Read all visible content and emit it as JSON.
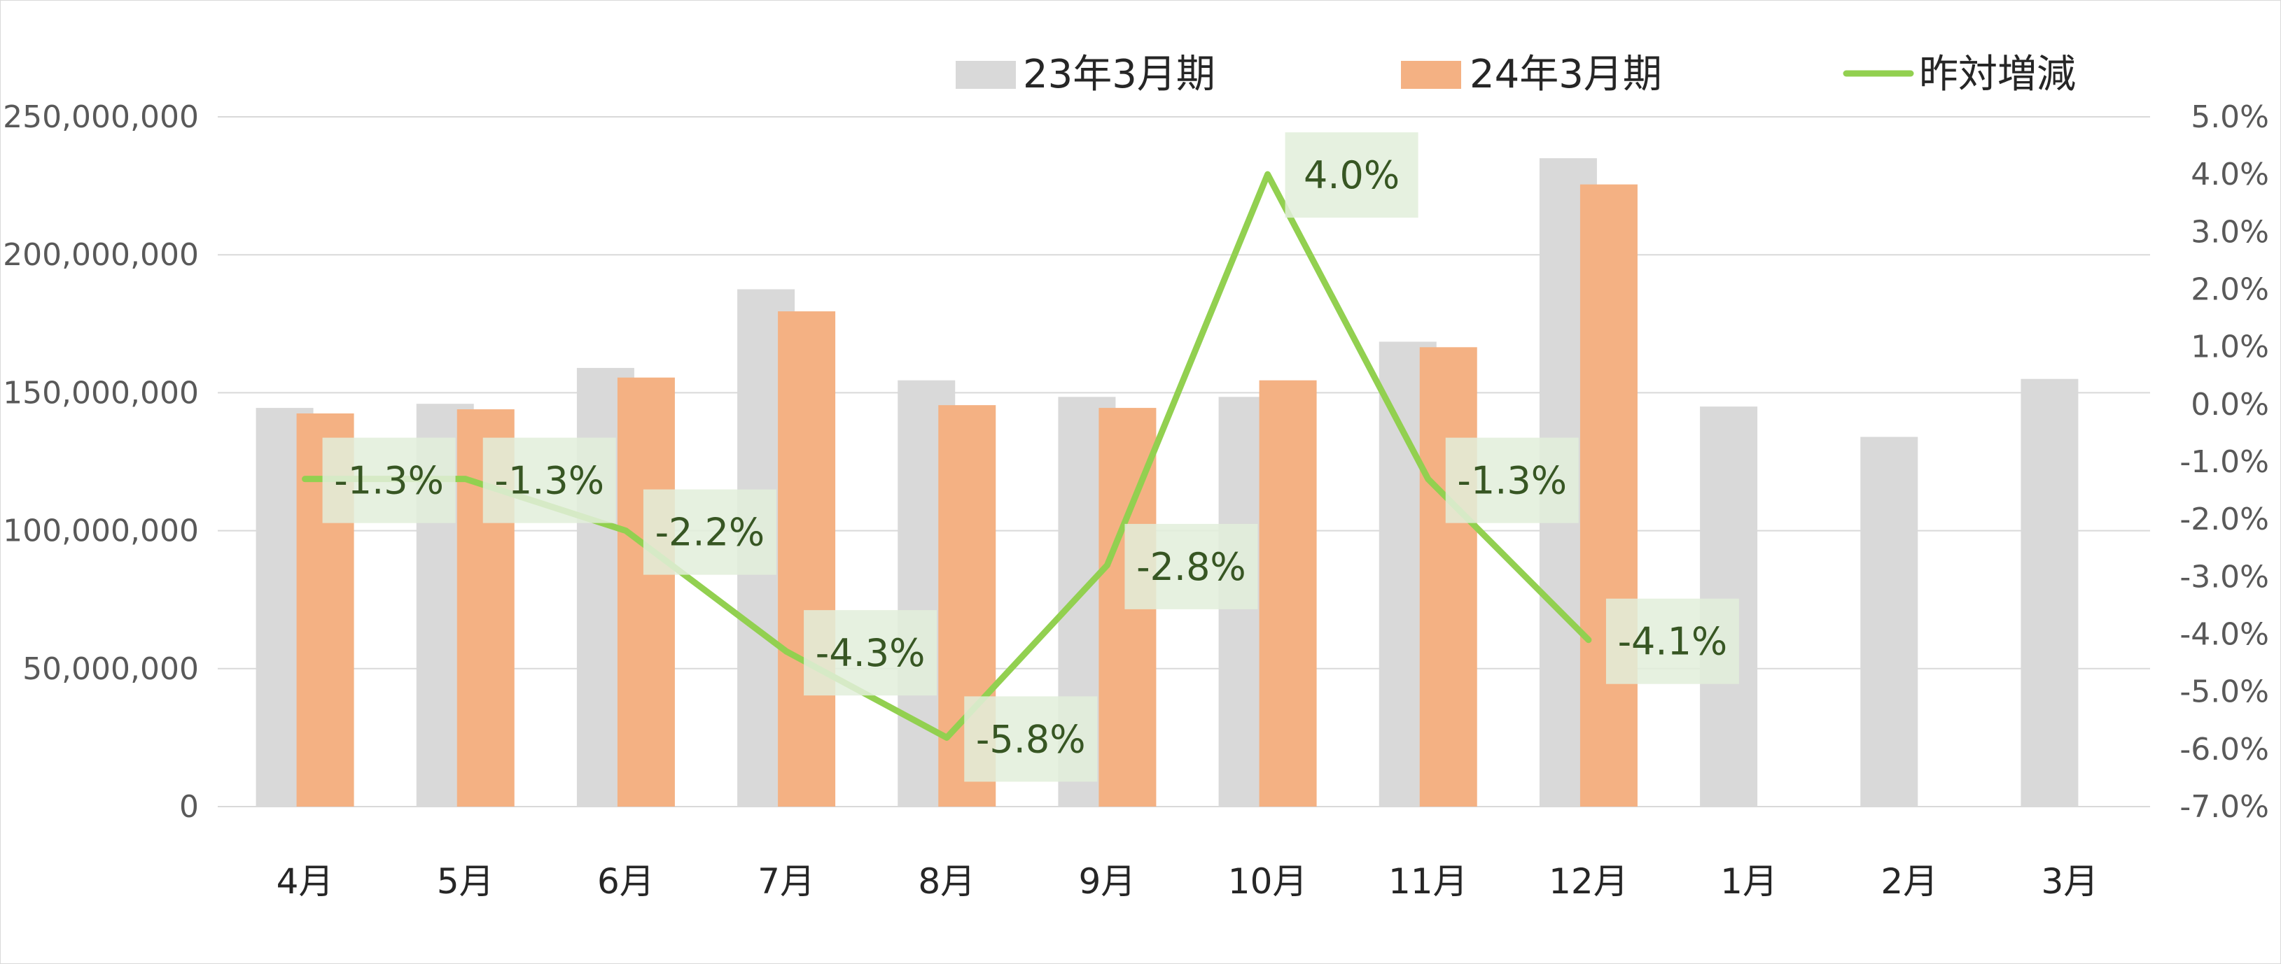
{
  "chart_data": {
    "type": "bar",
    "categories": [
      "4月",
      "5月",
      "6月",
      "7月",
      "8月",
      "9月",
      "10月",
      "11月",
      "12月",
      "1月",
      "2月",
      "3月"
    ],
    "series": [
      {
        "name": "23年3月期",
        "kind": "bar",
        "axis": "left",
        "color": "#d9d9d9",
        "values": [
          144500000,
          146000000,
          159000000,
          187500000,
          154500000,
          148500000,
          148500000,
          168500000,
          235000000,
          145000000,
          134000000,
          155000000
        ]
      },
      {
        "name": "24年3月期",
        "kind": "bar",
        "axis": "left",
        "color": "#f4b183",
        "values": [
          142500000,
          144000000,
          155500000,
          179500000,
          145500000,
          144500000,
          154500000,
          166500000,
          225500000,
          null,
          null,
          null
        ]
      },
      {
        "name": "昨対増減",
        "kind": "line",
        "axis": "right",
        "color": "#92d050",
        "values": [
          -1.3,
          -1.3,
          -2.2,
          -4.3,
          -5.8,
          -2.8,
          4.0,
          -1.3,
          -4.1,
          null,
          null,
          null
        ],
        "data_labels": [
          "-1.3%",
          "-1.3%",
          "-2.2%",
          "-4.3%",
          "-5.8%",
          "-2.8%",
          "4.0%",
          "-1.3%",
          "-4.1%"
        ]
      }
    ],
    "y_left": {
      "ylim": [
        0,
        250000000
      ],
      "ticks": [
        0,
        50000000,
        100000000,
        150000000,
        200000000,
        250000000
      ],
      "tick_labels": [
        "0",
        "50,000,000",
        "100,000,000",
        "150,000,000",
        "200,000,000",
        "250,000,000"
      ]
    },
    "y_right": {
      "ylim": [
        -7.0,
        5.0
      ],
      "ticks": [
        5.0,
        4.0,
        3.0,
        2.0,
        1.0,
        0.0,
        -1.0,
        -2.0,
        -3.0,
        -4.0,
        -5.0,
        -6.0,
        -7.0
      ],
      "tick_labels": [
        "5.0%",
        "4.0%",
        "3.0%",
        "2.0%",
        "1.0%",
        "0.0%",
        "-1.0%",
        "-2.0%",
        "-3.0%",
        "-4.0%",
        "-5.0%",
        "-6.0%",
        "-7.0%"
      ]
    },
    "grid": true,
    "legend_position": "top-right",
    "legend": [
      "23年3月期",
      "24年3月期",
      "昨対増減"
    ],
    "label_box_color": "#e2efda"
  }
}
